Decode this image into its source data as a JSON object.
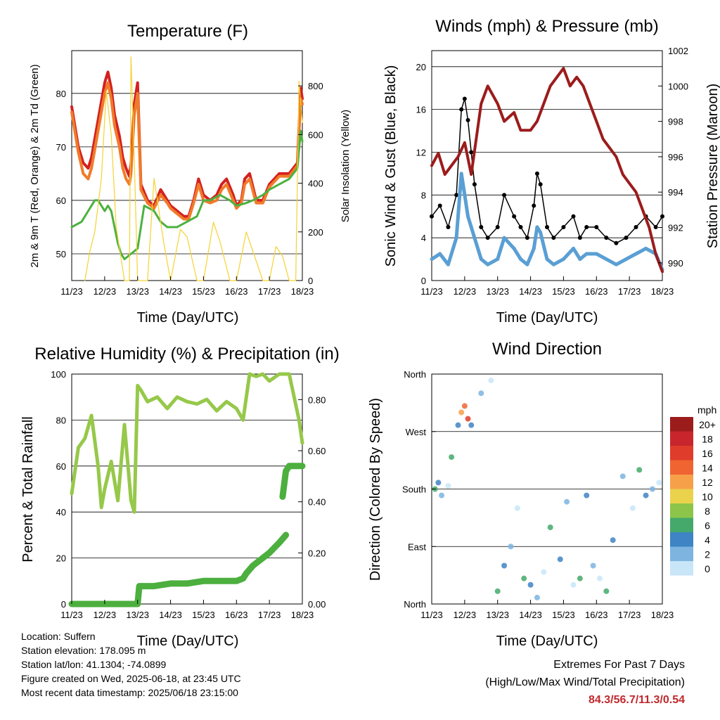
{
  "chart_data": [
    {
      "type": "line",
      "title": "Temperature (F)",
      "xlabel": "Time (Day/UTC)",
      "ylabel": "2m & 9m T (Red, Orange) & 2m Td (Green)",
      "ylabel_right": "Solar Insolation (Yellow)",
      "xticks": [
        "11/23",
        "12/23",
        "13/23",
        "14/23",
        "15/23",
        "16/23",
        "17/23",
        "18/23"
      ],
      "ylim": [
        45,
        88
      ],
      "yticks": [
        "50",
        "60",
        "70",
        "80"
      ],
      "ylim_right": [
        0,
        945
      ],
      "yticks_right": [
        "0",
        "200",
        "400",
        "600",
        "800"
      ],
      "grid": true,
      "series": [
        {
          "role": "2m T",
          "color": "#d42020",
          "x": [
            0,
            0.2,
            0.35,
            0.5,
            0.6,
            0.8,
            1.0,
            1.1,
            1.2,
            1.3,
            1.45,
            1.55,
            1.65,
            1.75,
            1.8,
            1.9,
            2.0,
            2.1,
            2.3,
            2.5,
            2.7,
            2.9,
            3.0,
            3.2,
            3.4,
            3.55,
            3.7,
            3.85,
            4.0,
            4.2,
            4.4,
            4.55,
            4.7,
            4.9,
            5.0,
            5.15,
            5.25,
            5.4,
            5.6,
            5.8,
            6.0,
            6.3,
            6.6,
            6.85,
            6.95,
            7.0
          ],
          "values": [
            77.5,
            70,
            67,
            66,
            68,
            75,
            82,
            84,
            81,
            76,
            72,
            68,
            66,
            64.5,
            67,
            78,
            82,
            63,
            60,
            59,
            62,
            60,
            59,
            58,
            57,
            57,
            60,
            64,
            61,
            60,
            61,
            63,
            64,
            61,
            59,
            60,
            64,
            65,
            60,
            60,
            63,
            65,
            65,
            67,
            81,
            79
          ]
        },
        {
          "role": "9m T",
          "color": "#f07b2a",
          "x": [
            0,
            0.2,
            0.35,
            0.5,
            0.6,
            0.8,
            1.0,
            1.1,
            1.2,
            1.3,
            1.45,
            1.55,
            1.65,
            1.75,
            1.8,
            1.9,
            2.0,
            2.1,
            2.3,
            2.5,
            2.7,
            2.9,
            3.0,
            3.2,
            3.4,
            3.55,
            3.7,
            3.85,
            4.0,
            4.2,
            4.4,
            4.55,
            4.7,
            4.9,
            5.0,
            5.15,
            5.25,
            5.4,
            5.6,
            5.8,
            6.0,
            6.3,
            6.6,
            6.85,
            6.95,
            7.0
          ],
          "values": [
            76.5,
            69,
            65,
            64,
            66,
            73,
            80,
            82,
            79,
            74,
            70,
            66,
            64,
            63,
            65,
            76,
            80,
            62,
            59.5,
            58.5,
            61,
            59.5,
            58.5,
            57.5,
            56.5,
            56.5,
            59.5,
            63,
            60,
            59.5,
            60,
            62,
            63,
            60,
            58.5,
            59.5,
            63,
            64,
            59.5,
            59.5,
            62.5,
            64.5,
            64.5,
            66.5,
            79,
            78
          ]
        },
        {
          "role": "2m Td",
          "color": "#4cb140",
          "x": [
            0,
            0.3,
            0.5,
            0.7,
            0.8,
            1.0,
            1.1,
            1.2,
            1.4,
            1.5,
            1.6,
            1.8,
            2.0,
            2.2,
            2.5,
            2.7,
            2.9,
            3.2,
            3.5,
            3.8,
            4.0,
            4.2,
            4.5,
            4.8,
            5.0,
            5.3,
            5.5,
            5.8,
            6.0,
            6.3,
            6.6,
            6.85,
            6.95,
            7.0
          ],
          "values": [
            55,
            56,
            58,
            60,
            60,
            58,
            59,
            58,
            52,
            50,
            49,
            50,
            51,
            59,
            58,
            56,
            55,
            55,
            56,
            57,
            60,
            60,
            61,
            60,
            59,
            59.5,
            60,
            61,
            62,
            63,
            64,
            66,
            73,
            71
          ]
        },
        {
          "role": "Solar Insolation",
          "axis": "right",
          "color": "#f5d232",
          "x": [
            0.4,
            0.55,
            0.7,
            0.9,
            1.05,
            1.2,
            1.35,
            1.6,
            1.75,
            1.8,
            1.9,
            2.0,
            2.3,
            2.5,
            2.8,
            3.0,
            3.3,
            3.5,
            3.8,
            4.0,
            4.3,
            4.5,
            4.8,
            5.0,
            5.3,
            5.5,
            5.8,
            6.0,
            6.2,
            6.4,
            6.6,
            6.8,
            6.9,
            7.0
          ],
          "values": [
            0,
            120,
            200,
            420,
            780,
            600,
            220,
            0,
            0,
            920,
            500,
            0,
            0,
            420,
            150,
            0,
            210,
            180,
            0,
            0,
            240,
            160,
            0,
            0,
            200,
            120,
            0,
            0,
            140,
            100,
            0,
            0,
            820,
            650
          ]
        }
      ]
    },
    {
      "type": "scatter",
      "title": "Winds (mph) & Pressure (mb)",
      "xlabel": "Time (Day/UTC)",
      "ylabel": "Sonic Wind & Gust (Blue, Black)",
      "ylabel_right": "Station Pressure (Maroon)",
      "xticks": [
        "11/23",
        "12/23",
        "13/23",
        "14/23",
        "15/23",
        "16/23",
        "17/23",
        "18/23"
      ],
      "ylim": [
        0,
        21.5
      ],
      "yticks": [
        "0",
        "4",
        "8",
        "12",
        "16",
        "20"
      ],
      "ylim_right": [
        989,
        1002
      ],
      "yticks_right": [
        "990",
        "992",
        "994",
        "996",
        "998",
        "1000",
        "1002"
      ],
      "grid": true,
      "series": [
        {
          "role": "Gust",
          "color": "#000000",
          "x": [
            0,
            0.25,
            0.5,
            0.75,
            0.9,
            1.0,
            1.1,
            1.2,
            1.3,
            1.5,
            1.7,
            2.0,
            2.2,
            2.5,
            2.7,
            2.9,
            3.1,
            3.2,
            3.3,
            3.5,
            3.7,
            4.0,
            4.3,
            4.5,
            4.7,
            5.0,
            5.3,
            5.6,
            5.9,
            6.2,
            6.5,
            6.8,
            7.0
          ],
          "values": [
            6,
            7,
            5,
            8,
            16,
            17,
            15,
            12,
            9,
            5,
            4,
            5,
            8,
            6,
            5,
            4,
            7,
            10,
            9,
            5,
            4,
            5,
            6,
            4,
            5,
            5,
            4,
            3.5,
            4,
            5,
            6,
            5,
            6
          ]
        },
        {
          "role": "Wind",
          "color": "#5a9fd4",
          "x": [
            0,
            0.25,
            0.5,
            0.75,
            0.9,
            1.0,
            1.1,
            1.2,
            1.3,
            1.5,
            1.7,
            2.0,
            2.2,
            2.5,
            2.7,
            2.9,
            3.1,
            3.2,
            3.3,
            3.5,
            3.7,
            4.0,
            4.3,
            4.5,
            4.7,
            5.0,
            5.3,
            5.6,
            5.9,
            6.2,
            6.5,
            6.8,
            7.0
          ],
          "values": [
            2,
            2.5,
            1.5,
            4,
            10,
            8,
            6,
            5,
            4,
            2,
            1.5,
            2,
            4,
            3,
            2,
            1.5,
            3,
            5,
            4.5,
            2,
            1.5,
            2,
            3,
            2,
            2.5,
            2.5,
            2,
            1.5,
            2,
            2.5,
            3,
            2.5,
            1
          ]
        },
        {
          "role": "Pressure",
          "axis": "right",
          "color": "#9c1c1c",
          "x": [
            0,
            0.2,
            0.4,
            0.6,
            0.8,
            1.0,
            1.2,
            1.5,
            1.7,
            2.0,
            2.2,
            2.5,
            2.7,
            3.0,
            3.2,
            3.4,
            3.6,
            3.8,
            4.0,
            4.2,
            4.4,
            4.6,
            4.8,
            5.0,
            5.2,
            5.4,
            5.6,
            5.8,
            6.0,
            6.2,
            6.4,
            6.6,
            6.8,
            7.0
          ],
          "values": [
            995.5,
            996.2,
            995,
            995.5,
            996,
            996.8,
            995,
            999,
            1000,
            999,
            998,
            998.5,
            997.5,
            997.5,
            998,
            999,
            1000,
            1000.5,
            1001,
            1000,
            1000.5,
            1000,
            999,
            998,
            997,
            996.5,
            996,
            995,
            994.5,
            994,
            993,
            992,
            990.5,
            989.5
          ]
        }
      ]
    },
    {
      "type": "line",
      "title": "Relative Humidity (%) & Precipitation (in)",
      "xlabel": "Time (Day/UTC)",
      "ylabel": "Percent & Total Rainfall",
      "xticks": [
        "11/23",
        "12/23",
        "13/23",
        "14/23",
        "15/23",
        "16/23",
        "17/23",
        "18/23"
      ],
      "ylim": [
        0,
        100
      ],
      "yticks": [
        "0",
        "20",
        "40",
        "60",
        "80",
        "100"
      ],
      "ylim_right": [
        0,
        0.9
      ],
      "yticks_right": [
        "0.00",
        "0.20",
        "0.40",
        "0.60",
        "0.80"
      ],
      "grid": true,
      "series": [
        {
          "role": "Relative Humidity",
          "color": "#96c84a",
          "x": [
            0,
            0.2,
            0.4,
            0.6,
            0.8,
            0.9,
            1.0,
            1.2,
            1.4,
            1.6,
            1.8,
            1.9,
            2.0,
            2.1,
            2.3,
            2.6,
            2.9,
            3.2,
            3.5,
            3.8,
            4.1,
            4.4,
            4.7,
            5.0,
            5.2,
            5.4,
            5.6,
            5.8,
            6.0,
            6.3,
            6.6,
            6.9,
            7.0
          ],
          "values": [
            48,
            68,
            72,
            82,
            60,
            42,
            50,
            62,
            45,
            78,
            45,
            40,
            95,
            93,
            88,
            90,
            85,
            90,
            88,
            87,
            89,
            84,
            88,
            85,
            80,
            100,
            99,
            100,
            97,
            100,
            100,
            80,
            70
          ]
        },
        {
          "role": "Total Rainfall",
          "axis": "right",
          "color": "#4caf3e",
          "x": [
            0,
            1.0,
            1.8,
            2.0,
            2.05,
            2.5,
            3.0,
            3.5,
            4.0,
            4.5,
            5.0,
            5.2,
            5.3,
            5.5,
            5.7,
            6.0,
            6.3,
            6.5
          ],
          "values": [
            0,
            0,
            0,
            0,
            0.07,
            0.07,
            0.08,
            0.08,
            0.09,
            0.09,
            0.09,
            0.1,
            0.12,
            0.15,
            0.17,
            0.2,
            0.24,
            0.27
          ]
        },
        {
          "role": "Total Rainfall (2nd)",
          "axis": "right",
          "color": "#4caf3e",
          "x": [
            6.4,
            6.5,
            6.6,
            6.8,
            7.0
          ],
          "values": [
            0.42,
            0.52,
            0.54,
            0.54,
            0.54
          ]
        }
      ]
    },
    {
      "type": "scatter",
      "title": "Wind Direction",
      "xlabel": "Time (Day/UTC)",
      "ylabel": "Direction (Colored By Speed)",
      "xticks": [
        "11/23",
        "12/23",
        "13/23",
        "14/23",
        "15/23",
        "16/23",
        "17/23",
        "18/23"
      ],
      "yticks": [
        "North",
        "East",
        "South",
        "West",
        "North"
      ],
      "ylim": [
        0,
        360
      ],
      "grid": true,
      "colorbar": {
        "unit": "mph",
        "labels": [
          "20+",
          "18",
          "16",
          "14",
          "12",
          "10",
          "8",
          "6",
          "4",
          "2",
          "0"
        ],
        "colors": [
          "#9c1c1c",
          "#c8262c",
          "#e03c2c",
          "#f06432",
          "#f7a04a",
          "#ead24c",
          "#8cc54a",
          "#44a96a",
          "#3f84c4",
          "#7db4e0",
          "#c8e6f8"
        ]
      },
      "series": [
        {
          "role": "Direction",
          "x": [
            0.1,
            0.2,
            0.3,
            0.5,
            0.6,
            0.8,
            0.9,
            1.0,
            1.1,
            1.2,
            1.5,
            1.8,
            2.0,
            2.2,
            2.4,
            2.6,
            2.8,
            3.0,
            3.2,
            3.4,
            3.6,
            3.9,
            4.1,
            4.3,
            4.5,
            4.7,
            4.9,
            5.1,
            5.3,
            5.5,
            5.8,
            6.1,
            6.3,
            6.5,
            6.7,
            6.9
          ],
          "values": [
            180,
            190,
            170,
            185,
            230,
            280,
            300,
            310,
            290,
            280,
            330,
            350,
            20,
            60,
            90,
            150,
            40,
            30,
            10,
            50,
            120,
            70,
            160,
            30,
            40,
            170,
            60,
            40,
            20,
            100,
            200,
            150,
            210,
            170,
            180,
            190
          ]
        }
      ]
    }
  ],
  "info": {
    "location": "Location: Suffern",
    "elevation": "Station elevation: 178.095 m",
    "latlon": "Station lat/lon: 41.1304; -74.0899",
    "created": "Figure created on Wed, 2025-06-18, at 23:45 UTC",
    "recent": "Most recent data timestamp: 2025/06/18 23:15:00"
  },
  "extremes": {
    "line1": "Extremes For Past 7 Days",
    "line2": "(High/Low/Max Wind/Total Precipitation)",
    "values": "84.3/56.7/11.3/0.54"
  }
}
